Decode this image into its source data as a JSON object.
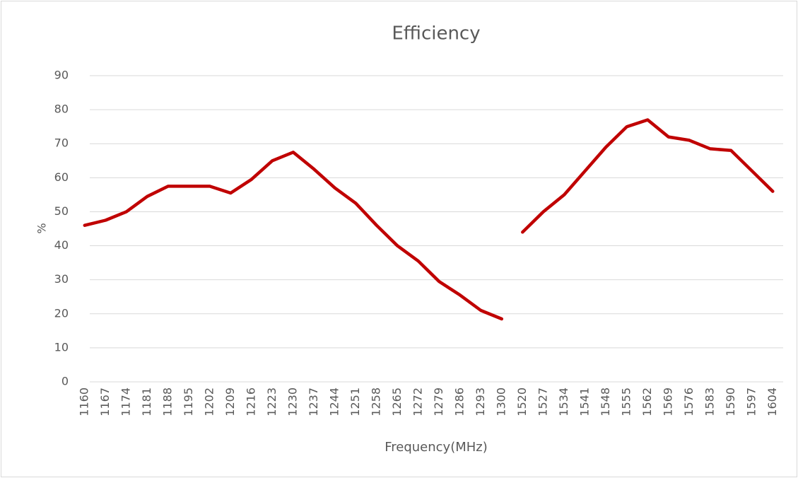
{
  "chart_data": {
    "type": "line",
    "title": "Efficiency",
    "x_label": "Frequency(MHz)",
    "y_label": "%",
    "categories": [
      "1160",
      "1167",
      "1174",
      "1181",
      "1188",
      "1195",
      "1202",
      "1209",
      "1216",
      "1223",
      "1230",
      "1237",
      "1244",
      "1251",
      "1258",
      "1265",
      "1272",
      "1279",
      "1286",
      "1293",
      "1300",
      "1520",
      "1527",
      "1534",
      "1541",
      "1548",
      "1555",
      "1562",
      "1569",
      "1576",
      "1583",
      "1590",
      "1597",
      "1604"
    ],
    "series": [
      {
        "color": "#c00000",
        "values": [
          46,
          47.5,
          50,
          54.5,
          57.5,
          57.5,
          57.5,
          55.5,
          59.5,
          65,
          67.5,
          62.5,
          57,
          52.5,
          46,
          40,
          35.5,
          29.5,
          25.5,
          21,
          18.5,
          null,
          null,
          null,
          null,
          null,
          null,
          null,
          null,
          null,
          null,
          null,
          null,
          null
        ]
      },
      {
        "color": "#c00000",
        "values": [
          null,
          null,
          null,
          null,
          null,
          null,
          null,
          null,
          null,
          null,
          null,
          null,
          null,
          null,
          null,
          null,
          null,
          null,
          null,
          null,
          null,
          44,
          50,
          55,
          62,
          69,
          75,
          77,
          72,
          71,
          68.5,
          68,
          62,
          56
        ]
      }
    ],
    "ylim": [
      0,
      90
    ],
    "yticks": [
      0,
      10,
      20,
      30,
      40,
      50,
      60,
      70,
      80,
      90
    ],
    "grid": true
  }
}
